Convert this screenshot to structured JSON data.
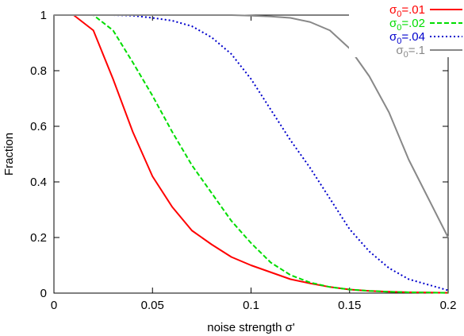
{
  "chart_data": {
    "type": "line",
    "title": "",
    "xlabel": "noise strength σ'",
    "ylabel": "Fraction",
    "xlim": [
      0,
      0.2
    ],
    "ylim": [
      0,
      1
    ],
    "xticks": [
      0,
      0.05,
      0.1,
      0.15,
      0.2
    ],
    "xtick_labels": [
      "0",
      "0.05",
      "0.1",
      "0.15",
      "0.2"
    ],
    "yticks": [
      0,
      0.2,
      0.4,
      0.6,
      0.8,
      1
    ],
    "ytick_labels": [
      "0",
      "0.2",
      "0.4",
      "0.6",
      "0.8",
      "1"
    ],
    "grid": false,
    "legend_position": "top-right",
    "x": [
      0,
      0.01,
      0.02,
      0.03,
      0.04,
      0.05,
      0.06,
      0.07,
      0.08,
      0.09,
      0.1,
      0.11,
      0.12,
      0.13,
      0.14,
      0.15,
      0.16,
      0.17,
      0.18,
      0.19,
      0.2
    ],
    "series": [
      {
        "name": "σ0=.01",
        "legend_main": "σ",
        "legend_sub": "0",
        "legend_rest": "=.01",
        "color": "#ff0000",
        "dash": "solid",
        "values": [
          1,
          1,
          0.945,
          0.77,
          0.58,
          0.42,
          0.31,
          0.225,
          0.175,
          0.13,
          0.1,
          0.075,
          0.05,
          0.035,
          0.022,
          0.013,
          0.008,
          0.005,
          0.003,
          0.002,
          0.001
        ]
      },
      {
        "name": "σ0=.02",
        "legend_main": "σ",
        "legend_sub": "0",
        "legend_rest": "=.02",
        "color": "#00dd00",
        "dash": "dashed",
        "values": [
          1,
          1,
          1,
          0.945,
          0.83,
          0.71,
          0.58,
          0.46,
          0.36,
          0.26,
          0.18,
          0.11,
          0.065,
          0.038,
          0.022,
          0.013,
          0.008,
          0.005,
          0.003,
          0.002,
          0.001
        ]
      },
      {
        "name": "σ0=.04",
        "legend_main": "σ",
        "legend_sub": "0",
        "legend_rest": "=.04",
        "color": "#0000cc",
        "dash": "dotted",
        "values": [
          1,
          1,
          1,
          1,
          0.998,
          0.99,
          0.98,
          0.96,
          0.92,
          0.86,
          0.77,
          0.66,
          0.55,
          0.45,
          0.34,
          0.23,
          0.15,
          0.09,
          0.05,
          0.03,
          0.01
        ]
      },
      {
        "name": "σ0=.1",
        "legend_main": "σ",
        "legend_sub": "0",
        "legend_rest": "=.1",
        "color": "#888888",
        "dash": "solid",
        "values": [
          1,
          1,
          1,
          1,
          1,
          1,
          1,
          1,
          1,
          1,
          0.998,
          0.995,
          0.99,
          0.975,
          0.945,
          0.88,
          0.78,
          0.65,
          0.48,
          0.34,
          0.2
        ]
      }
    ]
  }
}
